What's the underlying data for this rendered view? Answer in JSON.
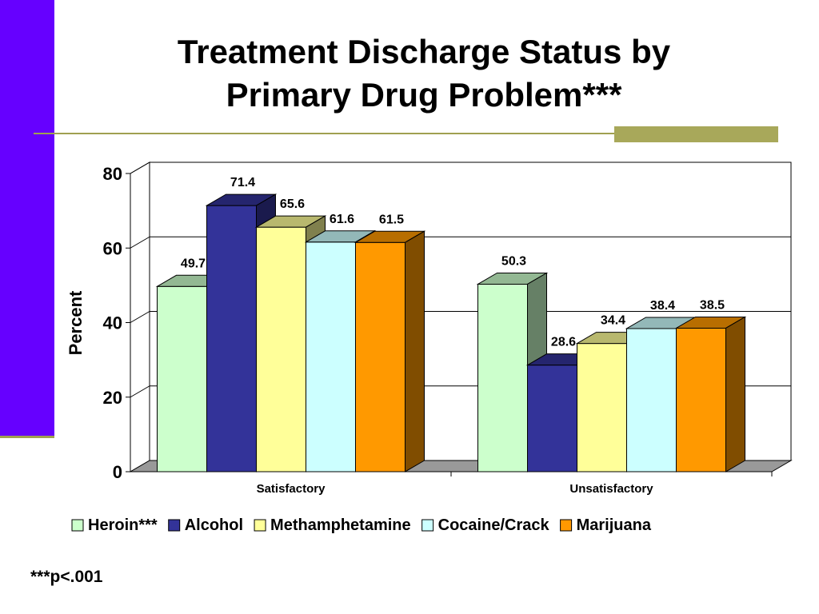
{
  "slide": {
    "title_line1": "Treatment Discharge Status by",
    "title_line2": "Primary Drug Problem***",
    "footnote": "***p<.001"
  },
  "chart_data": {
    "type": "bar",
    "categories": [
      "Satisfactory",
      "Unsatisfactory"
    ],
    "series": [
      {
        "name": "Heroin***",
        "values": [
          49.7,
          50.3
        ],
        "color": "#ccffcc"
      },
      {
        "name": "Alcohol",
        "values": [
          71.4,
          28.6
        ],
        "color": "#333399"
      },
      {
        "name": "Methamphetamine",
        "values": [
          65.6,
          34.4
        ],
        "color": "#ffff99"
      },
      {
        "name": "Cocaine/Crack",
        "values": [
          61.6,
          38.4
        ],
        "color": "#ccffff"
      },
      {
        "name": "Marijuana",
        "values": [
          61.5,
          38.5
        ],
        "color": "#ff9900"
      }
    ],
    "xlabel": "",
    "ylabel": "Percent",
    "ylim": [
      0,
      80
    ],
    "yticks": [
      0,
      20,
      40,
      60,
      80
    ],
    "grid": true,
    "legend_position": "bottom"
  }
}
